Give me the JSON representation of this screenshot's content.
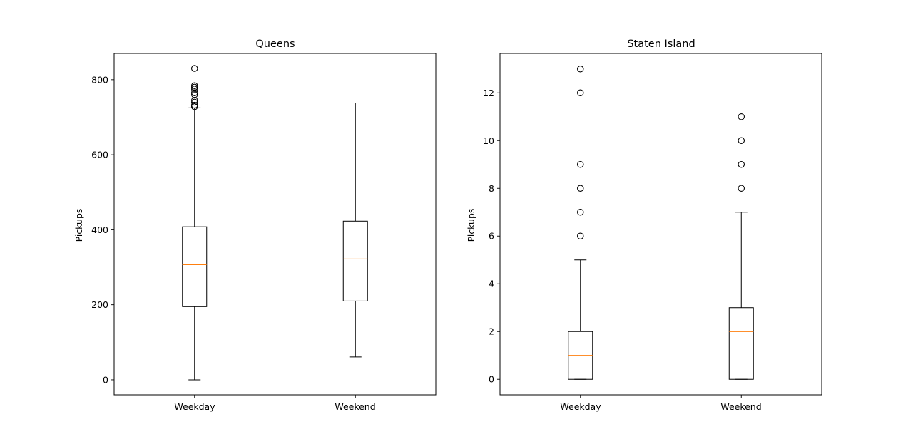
{
  "chart_data": [
    {
      "type": "box",
      "title": "Queens",
      "xlabel": "",
      "ylabel": "Pickups",
      "ylim": [
        -40,
        870
      ],
      "yticks": [
        0,
        200,
        400,
        600,
        800
      ],
      "categories": [
        "Weekday",
        "Weekend"
      ],
      "boxes": [
        {
          "whisker_low": 0,
          "q1": 195,
          "median": 307,
          "q3": 408,
          "whisker_high": 725,
          "outliers": [
            728,
            732,
            740,
            745,
            760,
            765,
            775,
            780,
            784,
            830
          ]
        },
        {
          "whisker_low": 61,
          "q1": 210,
          "median": 322,
          "q3": 423,
          "whisker_high": 738,
          "outliers": []
        }
      ]
    },
    {
      "type": "box",
      "title": "Staten Island",
      "xlabel": "",
      "ylabel": "Pickups",
      "ylim": [
        -0.65,
        13.65
      ],
      "yticks": [
        0,
        2,
        4,
        6,
        8,
        10,
        12
      ],
      "categories": [
        "Weekday",
        "Weekend"
      ],
      "boxes": [
        {
          "whisker_low": 0,
          "q1": 0,
          "median": 1,
          "q3": 2,
          "whisker_high": 5,
          "outliers": [
            6,
            7,
            8,
            9,
            12,
            13
          ]
        },
        {
          "whisker_low": 0,
          "q1": 0,
          "median": 2,
          "q3": 3,
          "whisker_high": 7,
          "outliers": [
            8,
            9,
            10,
            11
          ]
        }
      ]
    }
  ],
  "colors": {
    "box": "#000000",
    "median": "#ff7f0e",
    "outlier_edge": "#000000"
  }
}
